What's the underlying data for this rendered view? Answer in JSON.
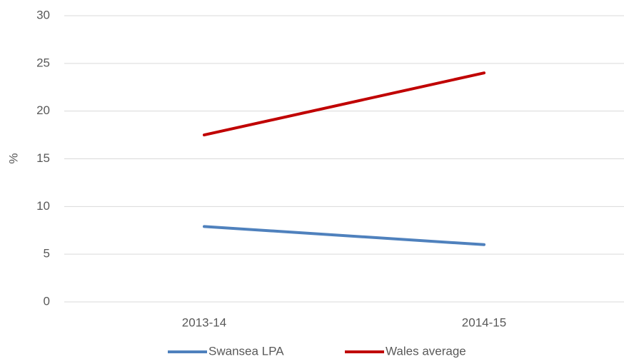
{
  "chart_data": {
    "type": "line",
    "y_label": "%",
    "categories": [
      "2013-14",
      "2014-15"
    ],
    "series": [
      {
        "name": "Swansea LPA",
        "color": "#4f81bd",
        "values": [
          7.9,
          6.0
        ]
      },
      {
        "name": "Wales average",
        "color": "#c00000",
        "values": [
          17.5,
          24.0
        ]
      }
    ],
    "ylim": [
      0,
      30
    ],
    "yticks": [
      0,
      5,
      10,
      15,
      20,
      25,
      30
    ],
    "grid": true,
    "legend": "bottom"
  }
}
